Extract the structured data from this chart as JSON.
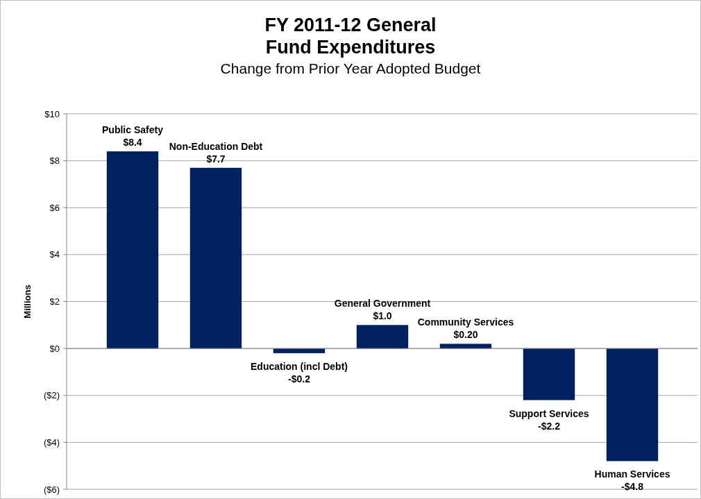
{
  "chart_data": {
    "type": "bar",
    "title": "FY 2011-12 General\nFund Expenditures",
    "subtitle": "Change from Prior Year Adopted Budget",
    "ylabel": "Millions",
    "categories": [
      "Public Safety",
      "Non-Education Debt",
      "Education (incl Debt)",
      "General Government",
      "Community Services",
      "Support Services",
      "Human Services"
    ],
    "values": [
      8.4,
      7.7,
      -0.2,
      1.0,
      0.2,
      -2.2,
      -4.8
    ],
    "value_labels": [
      "$8.4",
      "$7.7",
      "-$0.2",
      "$1.0",
      "$0.20",
      "-$2.2",
      "-$4.8"
    ],
    "color": "#002060",
    "ylim": [
      -6,
      10
    ],
    "yticks": [
      {
        "value": -6,
        "label": "($6)"
      },
      {
        "value": -4,
        "label": "($4)"
      },
      {
        "value": -2,
        "label": "($2)"
      },
      {
        "value": 0,
        "label": "$0"
      },
      {
        "value": 2,
        "label": "$2"
      },
      {
        "value": 4,
        "label": "$4"
      },
      {
        "value": 6,
        "label": "$6"
      },
      {
        "value": 8,
        "label": "$8"
      },
      {
        "value": 10,
        "label": "$10"
      }
    ],
    "grid": "y"
  }
}
